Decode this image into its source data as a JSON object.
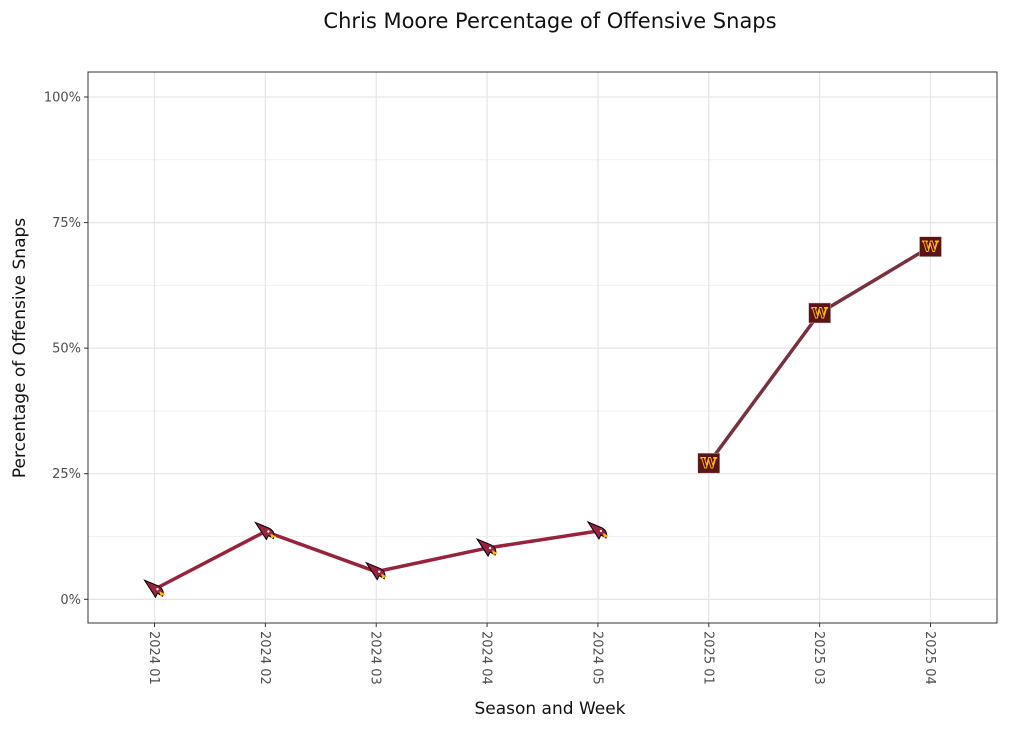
{
  "chart_data": {
    "type": "line",
    "title": "Chris Moore Percentage of Offensive Snaps",
    "xlabel": "Season and Week",
    "ylabel": "Percentage of Offensive Snaps",
    "categories": [
      "2024 01",
      "2024 02",
      "2024 03",
      "2024 04",
      "2024 05",
      "2025 01",
      "2025 03",
      "2025 04"
    ],
    "ylim": [
      -4,
      105
    ],
    "yticks": [
      0,
      25,
      50,
      75,
      100
    ],
    "ytick_labels": [
      "0%",
      "25%",
      "50%",
      "75%",
      "100%"
    ],
    "grid": true,
    "legend": "none",
    "series": [
      {
        "name": "ARI",
        "color": "#97233F",
        "marker": "cardinal-logo",
        "x": [
          "2024 01",
          "2024 02",
          "2024 03",
          "2024 04",
          "2024 05"
        ],
        "values": [
          2.0,
          13.5,
          5.5,
          10.2,
          13.6
        ]
      },
      {
        "name": "WAS",
        "color": "#773141",
        "marker_bg": "#5A1414",
        "marker_fg": "#FFB612",
        "marker": "commanders-logo",
        "x": [
          "2025 01",
          "2025 03",
          "2025 04"
        ],
        "values": [
          27.1,
          57.0,
          70.2
        ]
      }
    ]
  }
}
